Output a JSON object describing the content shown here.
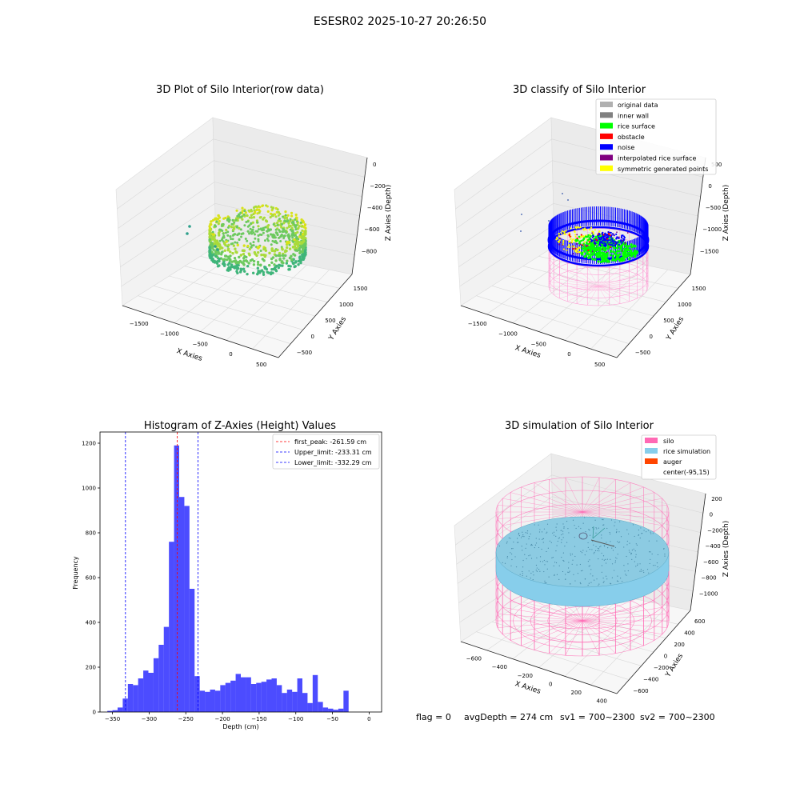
{
  "figure": {
    "suptitle": "ESESR02 2025-10-27 20:26:50",
    "status": {
      "flag": "flag = 0",
      "avg_depth": "avgDepth = 274 cm",
      "sv1": "sv1 = 700~2300",
      "sv2": "sv2 = 700~2300"
    }
  },
  "chart_data": [
    {
      "type": "scatter",
      "title": "3D Plot of Silo Interior(row data)",
      "xlabel": "X Axies",
      "ylabel": "Y Axies",
      "zlabel": "Z Axies (Depth)",
      "x_ticks": [
        "−1500",
        "−1000",
        "−500",
        "0",
        "500"
      ],
      "y_ticks": [
        "−500",
        "0",
        "500",
        "1000",
        "1500"
      ],
      "z_ticks": [
        "0",
        "−200",
        "−400",
        "−600",
        "−800"
      ],
      "colormap": [
        "#2fa08c",
        "#3fb57a",
        "#6cc95e",
        "#a9db3a",
        "#d8e219"
      ]
    },
    {
      "type": "scatter",
      "title": "3D classify of Silo Interior",
      "xlabel": "X Axies",
      "ylabel": "Y Axies",
      "zlabel": "Z Axies (Depth)",
      "x_ticks": [
        "−1500",
        "−1000",
        "−500",
        "0",
        "500"
      ],
      "y_ticks": [
        "−500",
        "0",
        "500",
        "1000",
        "1500"
      ],
      "z_ticks": [
        "500",
        "0",
        "−500",
        "−1000",
        "−1500"
      ],
      "legend": [
        {
          "label": "original data",
          "color": "#b0b0b0"
        },
        {
          "label": "inner wall",
          "color": "#808080"
        },
        {
          "label": "rice surface",
          "color": "#00ff00"
        },
        {
          "label": "obstacle",
          "color": "#ff0000"
        },
        {
          "label": "noise",
          "color": "#0000ff"
        },
        {
          "label": "interpolated rice surface",
          "color": "#800080"
        },
        {
          "label": "symmetric generated points",
          "color": "#ffff00"
        }
      ],
      "legend_location": "top-right"
    },
    {
      "type": "bar",
      "title": "Histogram of Z-Axies (Height) Values",
      "xlabel": "Depth (cm)",
      "ylabel": "Frequency",
      "x_ticks": [
        -350,
        -300,
        -250,
        -200,
        -150,
        -100,
        -50,
        0
      ],
      "y_ticks": [
        0,
        200,
        400,
        600,
        800,
        1000,
        1200
      ],
      "xlim": [
        -367,
        17
      ],
      "ylim": [
        0,
        1250
      ],
      "bin_start": -357,
      "bin_width": 7,
      "values": [
        5,
        8,
        20,
        60,
        125,
        120,
        150,
        185,
        175,
        240,
        300,
        380,
        760,
        1190,
        960,
        920,
        550,
        160,
        95,
        90,
        100,
        95,
        120,
        130,
        140,
        170,
        155,
        155,
        125,
        130,
        135,
        145,
        150,
        120,
        85,
        100,
        90,
        150,
        85,
        40,
        165,
        45,
        20,
        15,
        10,
        15,
        95
      ],
      "bar_color": "#0000ff",
      "lines": [
        {
          "label": "first_peak: -261.59 cm",
          "x": -261.59,
          "color": "#ff0000"
        },
        {
          "label": "Upper_limit: -233.31 cm",
          "x": -233.31,
          "color": "#0000ff"
        },
        {
          "label": "Lower_limit: -332.29 cm",
          "x": -332.29,
          "color": "#0000ff"
        }
      ],
      "legend_location": "top-right"
    },
    {
      "type": "scatter",
      "title": "3D simulation of Silo Interior",
      "xlabel": "X Axies",
      "ylabel": "Y Axies",
      "zlabel": "Z Axies (Depth)",
      "x_ticks": [
        "−600",
        "−400",
        "−200",
        "0",
        "200",
        "400"
      ],
      "y_ticks": [
        "−600",
        "−400",
        "−200",
        "0",
        "200",
        "400",
        "600"
      ],
      "z_ticks": [
        "200",
        "0",
        "−200",
        "−400",
        "−600",
        "−800",
        "−1000"
      ],
      "legend": [
        {
          "label": "silo",
          "color": "#ff69b4"
        },
        {
          "label": "rice simulation",
          "color": "#87ceeb"
        },
        {
          "label": "auger",
          "color": "#ff4500"
        },
        {
          "label": "center(-95,15)",
          "color": ""
        }
      ],
      "legend_location": "top-right"
    }
  ]
}
